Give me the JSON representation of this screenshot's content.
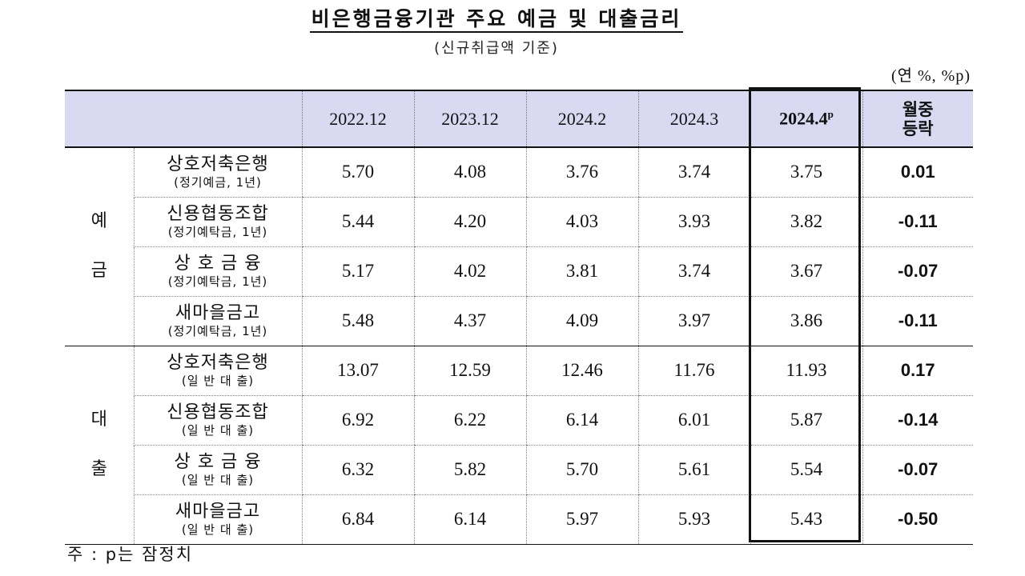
{
  "title": "비은행금융기관 주요 예금 및 대출금리",
  "subtitle": "(신규취급액 기준)",
  "unit": "(연 %, %p)",
  "header": {
    "columns": [
      "2022.12",
      "2023.12",
      "2024.2",
      "2024.3"
    ],
    "latest": "2024.4",
    "latest_sup": "p",
    "change_line1": "월중",
    "change_line2": "등락"
  },
  "sections": [
    {
      "label": [
        "예",
        "금"
      ],
      "rows": [
        {
          "name": "상호저축은행",
          "sub": "(정기예금, 1년)",
          "values": [
            "5.70",
            "4.08",
            "3.76",
            "3.74",
            "3.75"
          ],
          "change": "0.01"
        },
        {
          "name": "신용협동조합",
          "sub": "(정기예탁금, 1년)",
          "values": [
            "5.44",
            "4.20",
            "4.03",
            "3.93",
            "3.82"
          ],
          "change": "-0.11"
        },
        {
          "name": "상 호 금 융",
          "sub": "(정기예탁금, 1년)",
          "values": [
            "5.17",
            "4.02",
            "3.81",
            "3.74",
            "3.67"
          ],
          "change": "-0.07"
        },
        {
          "name": "새마을금고",
          "sub": "(정기예탁금, 1년)",
          "values": [
            "5.48",
            "4.37",
            "4.09",
            "3.97",
            "3.86"
          ],
          "change": "-0.11"
        }
      ]
    },
    {
      "label": [
        "대",
        "출"
      ],
      "rows": [
        {
          "name": "상호저축은행",
          "sub": "(일 반 대 출)",
          "values": [
            "13.07",
            "12.59",
            "12.46",
            "11.76",
            "11.93"
          ],
          "change": "0.17"
        },
        {
          "name": "신용협동조합",
          "sub": "(일 반 대 출)",
          "values": [
            "6.92",
            "6.22",
            "6.14",
            "6.01",
            "5.87"
          ],
          "change": "-0.14"
        },
        {
          "name": "상 호 금 융",
          "sub": "(일 반 대 출)",
          "values": [
            "6.32",
            "5.82",
            "5.70",
            "5.61",
            "5.54"
          ],
          "change": "-0.07"
        },
        {
          "name": "새마을금고",
          "sub": "(일 반 대 출)",
          "values": [
            "6.84",
            "6.14",
            "5.97",
            "5.93",
            "5.43"
          ],
          "change": "-0.50"
        }
      ]
    }
  ],
  "note": "주 : p는 잠정치"
}
